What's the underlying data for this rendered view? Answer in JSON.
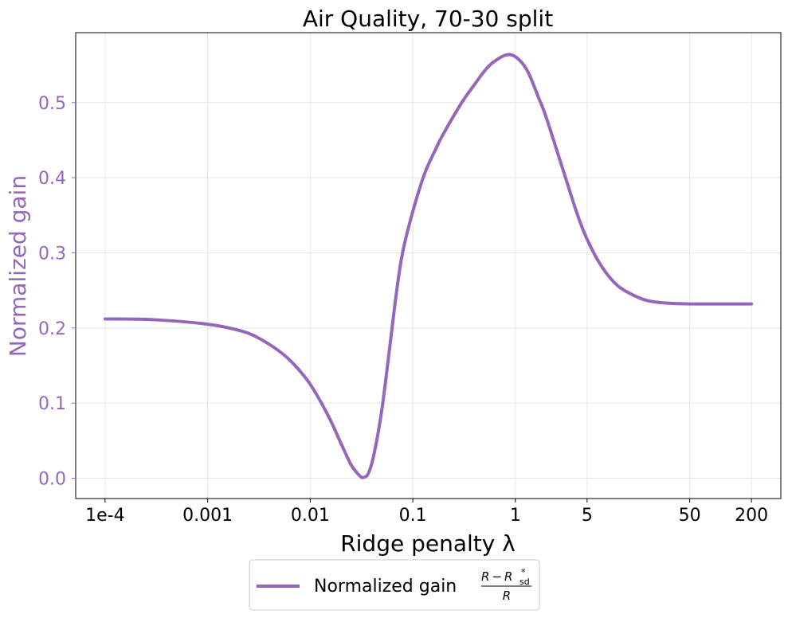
{
  "chart_data": {
    "type": "line",
    "title": "Air Quality, 70-30 split",
    "xlabel": "Ridge penalty λ",
    "ylabel": "Normalized gain",
    "xscale": "log",
    "xlim": [
      5.17e-05,
      387
    ],
    "ylim": [
      -0.027,
      0.593
    ],
    "grid": true,
    "legend_placement": "bottom-center, below plot",
    "x_ticks": [
      {
        "value": 0.0001,
        "label": "1e-4"
      },
      {
        "value": 0.001,
        "label": "0.001"
      },
      {
        "value": 0.01,
        "label": "0.01"
      },
      {
        "value": 0.1,
        "label": "0.1"
      },
      {
        "value": 1,
        "label": "1"
      },
      {
        "value": 5,
        "label": "5"
      },
      {
        "value": 50,
        "label": "50"
      },
      {
        "value": 200,
        "label": "200"
      }
    ],
    "y_ticks": [
      {
        "value": 0.0,
        "label": "0.0"
      },
      {
        "value": 0.1,
        "label": "0.1"
      },
      {
        "value": 0.2,
        "label": "0.2"
      },
      {
        "value": 0.3,
        "label": "0.3"
      },
      {
        "value": 0.4,
        "label": "0.4"
      },
      {
        "value": 0.5,
        "label": "0.5"
      }
    ],
    "colors": {
      "series": "#9467bd",
      "axis_label": "#9467bd",
      "grid": "#e6e6e6"
    },
    "series": [
      {
        "name": "Normalized gain",
        "legend_formula": {
          "numerator_left": "R",
          "minus": "−",
          "numerator_right": "R",
          "sup": "*",
          "sub": "sd",
          "denominator": "R"
        },
        "x": [
          0.0001,
          0.0003,
          0.001,
          0.002,
          0.003,
          0.005,
          0.007,
          0.01,
          0.015,
          0.02,
          0.025,
          0.03,
          0.033,
          0.037,
          0.042,
          0.05,
          0.06,
          0.07,
          0.08,
          0.1,
          0.13,
          0.17,
          0.2,
          0.3,
          0.4,
          0.5,
          0.6,
          0.8,
          1.0,
          1.3,
          1.7,
          2,
          3,
          4,
          5,
          7,
          10,
          15,
          20,
          30,
          50,
          100,
          200
        ],
        "y": [
          0.212,
          0.211,
          0.205,
          0.197,
          0.188,
          0.169,
          0.151,
          0.125,
          0.083,
          0.046,
          0.018,
          0.004,
          0.001,
          0.007,
          0.033,
          0.092,
          0.178,
          0.252,
          0.302,
          0.355,
          0.405,
          0.44,
          0.459,
          0.5,
          0.524,
          0.542,
          0.553,
          0.563,
          0.561,
          0.543,
          0.505,
          0.48,
          0.405,
          0.352,
          0.318,
          0.281,
          0.256,
          0.242,
          0.236,
          0.233,
          0.232,
          0.232,
          0.232
        ]
      }
    ]
  }
}
